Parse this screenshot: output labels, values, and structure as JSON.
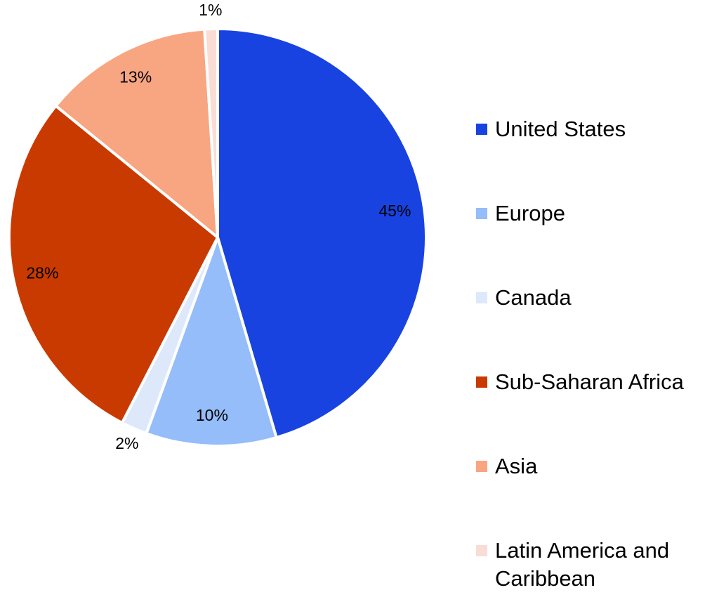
{
  "chart_data": {
    "type": "pie",
    "categories": [
      "United States",
      "Europe",
      "Canada",
      "Sub-Saharan Africa",
      "Asia",
      "Latin America and Caribbean"
    ],
    "values": [
      45,
      10,
      2,
      28,
      13,
      1
    ],
    "value_labels": [
      "45%",
      "10%",
      "2%",
      "28%",
      "13%",
      "1%"
    ],
    "colors": [
      "#1843e0",
      "#94bdf9",
      "#dde9fb",
      "#c93a00",
      "#f8a582",
      "#f9ddd5"
    ],
    "legend": "right"
  }
}
